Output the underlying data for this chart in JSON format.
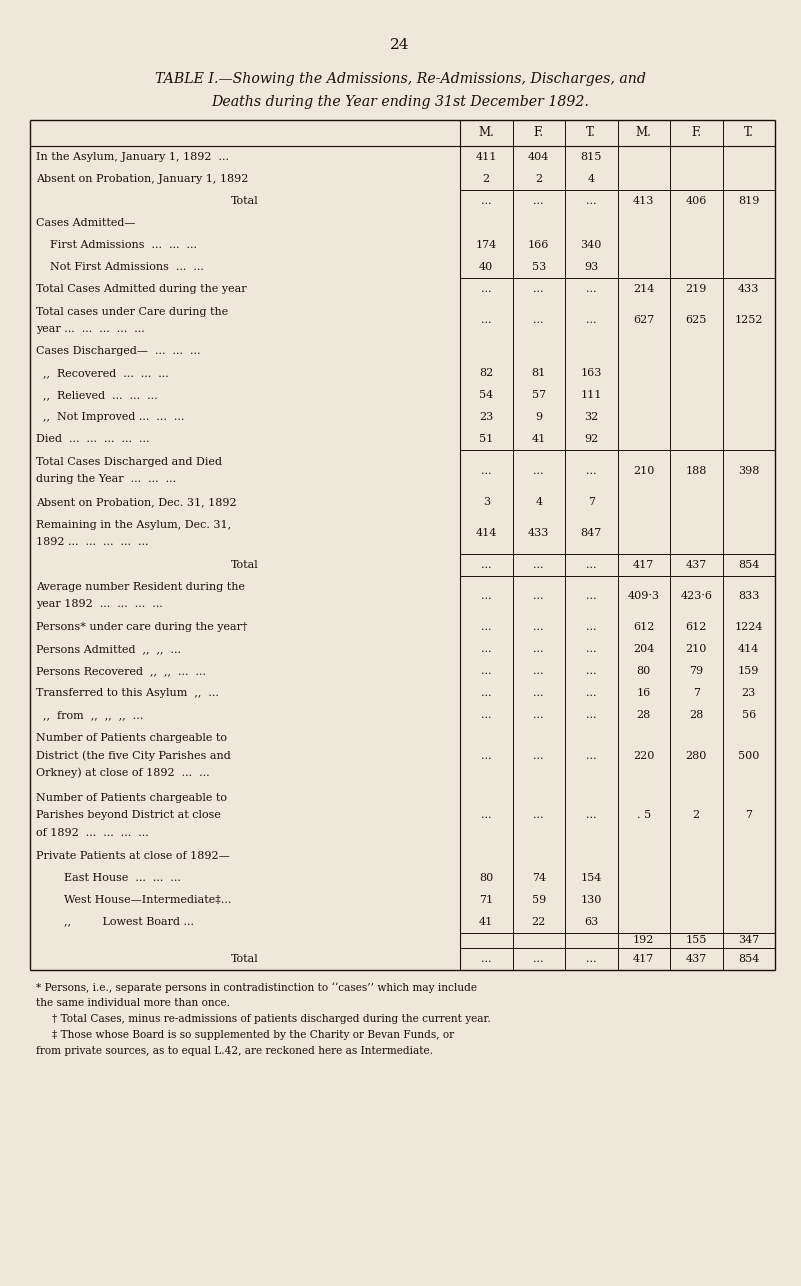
{
  "page_number": "24",
  "title_line1": "TABLE I.—Showing the Admissions, Re-Admissions, Discharges, and",
  "title_line2": "Deaths during the Year ending 31st December 1892.",
  "bg_color": "#ede8d8",
  "text_color": "#1a1008",
  "col_headers": [
    "M.",
    "F.",
    "T.",
    "M.",
    "F.",
    "T."
  ],
  "rows": [
    {
      "label": [
        "In the Asylum, January 1, 1892  ..."
      ],
      "label_indent": false,
      "label_center": false,
      "m1": "411",
      "f1": "404",
      "t1": "815",
      "m2": "",
      "f2": "",
      "t2": "",
      "sep_before": false,
      "sep_col_only": false
    },
    {
      "label": [
        "Absent on Probation, January 1, 1892"
      ],
      "label_indent": false,
      "label_center": false,
      "m1": "2",
      "f1": "2",
      "t1": "4",
      "m2": "",
      "f2": "",
      "t2": "",
      "sep_before": false,
      "sep_col_only": false
    },
    {
      "label": [
        "Total"
      ],
      "label_indent": false,
      "label_center": true,
      "m1": "...",
      "f1": "...",
      "t1": "...",
      "m2": "413",
      "f2": "406",
      "t2": "819",
      "sep_before": true,
      "sep_col_only": false
    },
    {
      "label": [
        "Cases Admitted—"
      ],
      "label_indent": false,
      "label_center": false,
      "m1": "",
      "f1": "",
      "t1": "",
      "m2": "",
      "f2": "",
      "t2": "",
      "sep_before": false,
      "sep_col_only": false
    },
    {
      "label": [
        "    First Admissions  ...  ...  ..."
      ],
      "label_indent": true,
      "label_center": false,
      "m1": "174",
      "f1": "166",
      "t1": "340",
      "m2": "",
      "f2": "",
      "t2": "",
      "sep_before": false,
      "sep_col_only": false
    },
    {
      "label": [
        "    Not First Admissions  ...  ..."
      ],
      "label_indent": true,
      "label_center": false,
      "m1": "40",
      "f1": "53",
      "t1": "93",
      "m2": "",
      "f2": "",
      "t2": "",
      "sep_before": false,
      "sep_col_only": false
    },
    {
      "label": [
        "Total Cases Admitted during the year"
      ],
      "label_indent": false,
      "label_center": false,
      "m1": "...",
      "f1": "...",
      "t1": "...",
      "m2": "214",
      "f2": "219",
      "t2": "433",
      "sep_before": true,
      "sep_col_only": false
    },
    {
      "label": [
        "Total cases under Care during the",
        "    year ...  ...  ...  ...  ..."
      ],
      "label_indent": false,
      "label_center": false,
      "m1": "...",
      "f1": "...",
      "t1": "...",
      "m2": "627",
      "f2": "625",
      "t2": "1252",
      "sep_before": false,
      "sep_col_only": false
    },
    {
      "label": [
        "Cases Discharged—  ...  ...  ..."
      ],
      "label_indent": false,
      "label_center": false,
      "m1": "",
      "f1": "",
      "t1": "",
      "m2": "",
      "f2": "",
      "t2": "",
      "sep_before": false,
      "sep_col_only": false
    },
    {
      "label": [
        "  ,,  Recovered  ...  ...  ..."
      ],
      "label_indent": false,
      "label_center": false,
      "m1": "82",
      "f1": "81",
      "t1": "163",
      "m2": "",
      "f2": "",
      "t2": "",
      "sep_before": false,
      "sep_col_only": false
    },
    {
      "label": [
        "  ,,  Relieved  ...  ...  ..."
      ],
      "label_indent": false,
      "label_center": false,
      "m1": "54",
      "f1": "57",
      "t1": "111",
      "m2": "",
      "f2": "",
      "t2": "",
      "sep_before": false,
      "sep_col_only": false
    },
    {
      "label": [
        "  ,,  Not Improved ...  ...  ..."
      ],
      "label_indent": false,
      "label_center": false,
      "m1": "23",
      "f1": "9",
      "t1": "32",
      "m2": "",
      "f2": "",
      "t2": "",
      "sep_before": false,
      "sep_col_only": false
    },
    {
      "label": [
        "Died  ...  ...  ...  ...  ..."
      ],
      "label_indent": false,
      "label_center": false,
      "m1": "51",
      "f1": "41",
      "t1": "92",
      "m2": "",
      "f2": "",
      "t2": "",
      "sep_before": false,
      "sep_col_only": false
    },
    {
      "label": [
        "Total Cases Discharged and Died",
        "    during the Year  ...  ...  ..."
      ],
      "label_indent": false,
      "label_center": false,
      "m1": "...",
      "f1": "...",
      "t1": "...",
      "m2": "210",
      "f2": "188",
      "t2": "398",
      "sep_before": true,
      "sep_col_only": false
    },
    {
      "label": [
        "Absent on Probation, Dec. 31, 1892"
      ],
      "label_indent": false,
      "label_center": false,
      "m1": "3",
      "f1": "4",
      "t1": "7",
      "m2": "",
      "f2": "",
      "t2": "",
      "sep_before": false,
      "sep_col_only": false
    },
    {
      "label": [
        "Remaining in the Asylum, Dec. 31,",
        "    1892 ...  ...  ...  ...  ..."
      ],
      "label_indent": false,
      "label_center": false,
      "m1": "414",
      "f1": "433",
      "t1": "847",
      "m2": "",
      "f2": "",
      "t2": "",
      "sep_before": false,
      "sep_col_only": false
    },
    {
      "label": [
        "Total"
      ],
      "label_indent": false,
      "label_center": true,
      "m1": "...",
      "f1": "...",
      "t1": "...",
      "m2": "417",
      "f2": "437",
      "t2": "854",
      "sep_before": true,
      "sep_col_only": false
    },
    {
      "label": [
        "Average number Resident during the",
        "    year 1892  ...  ...  ...  ..."
      ],
      "label_indent": false,
      "label_center": false,
      "m1": "...",
      "f1": "...",
      "t1": "...",
      "m2": "409·3",
      "f2": "423·6",
      "t2": "833",
      "sep_before": true,
      "sep_col_only": false
    },
    {
      "label": [
        "Persons* under care during the year†"
      ],
      "label_indent": false,
      "label_center": false,
      "m1": "...",
      "f1": "...",
      "t1": "...",
      "m2": "612",
      "f2": "612",
      "t2": "1224",
      "sep_before": false,
      "sep_col_only": false
    },
    {
      "label": [
        "Persons Admitted  ,,  ,,  ..."
      ],
      "label_indent": false,
      "label_center": false,
      "m1": "...",
      "f1": "...",
      "t1": "...",
      "m2": "204",
      "f2": "210",
      "t2": "414",
      "sep_before": false,
      "sep_col_only": false
    },
    {
      "label": [
        "Persons Recovered  ,,  ,,  ...  ..."
      ],
      "label_indent": false,
      "label_center": false,
      "m1": "...",
      "f1": "...",
      "t1": "...",
      "m2": "80",
      "f2": "79",
      "t2": "159",
      "sep_before": false,
      "sep_col_only": false
    },
    {
      "label": [
        "Transferred to this Asylum  ,,  ..."
      ],
      "label_indent": false,
      "label_center": false,
      "m1": "...",
      "f1": "...",
      "t1": "...",
      "m2": "16",
      "f2": "7",
      "t2": "23",
      "sep_before": false,
      "sep_col_only": false
    },
    {
      "label": [
        "  ,,  from  ,,  ,,  ,,  ..."
      ],
      "label_indent": false,
      "label_center": false,
      "m1": "...",
      "f1": "...",
      "t1": "...",
      "m2": "28",
      "f2": "28",
      "t2": "56",
      "sep_before": false,
      "sep_col_only": false
    },
    {
      "label": [
        "Number of Patients chargeable to",
        "    District (the five City Parishes and",
        "    Orkney) at close of 1892  ...  ..."
      ],
      "label_indent": false,
      "label_center": false,
      "m1": "...",
      "f1": "...",
      "t1": "...",
      "m2": "220",
      "f2": "280",
      "t2": "500",
      "sep_before": false,
      "sep_col_only": false
    },
    {
      "label": [
        "Number of Patients chargeable to",
        "    Parishes beyond District at close",
        "    of 1892  ...  ...  ...  ..."
      ],
      "label_indent": false,
      "label_center": false,
      "m1": "...",
      "f1": "...",
      "t1": "...",
      "m2": ". 5",
      "f2": "2",
      "t2": "7",
      "sep_before": false,
      "sep_col_only": false
    },
    {
      "label": [
        "Private Patients at close of 1892—"
      ],
      "label_indent": false,
      "label_center": false,
      "m1": "",
      "f1": "",
      "t1": "",
      "m2": "",
      "f2": "",
      "t2": "",
      "sep_before": false,
      "sep_col_only": false
    },
    {
      "label": [
        "        East House  ...  ...  ..."
      ],
      "label_indent": false,
      "label_center": false,
      "m1": "80",
      "f1": "74",
      "t1": "154",
      "m2": "",
      "f2": "",
      "t2": "",
      "sep_before": false,
      "sep_col_only": false
    },
    {
      "label": [
        "        West House—Intermediate‡..."
      ],
      "label_indent": false,
      "label_center": false,
      "m1": "71",
      "f1": "59",
      "t1": "130",
      "m2": "",
      "f2": "",
      "t2": "",
      "sep_before": false,
      "sep_col_only": false
    },
    {
      "label": [
        "        ,,         Lowest Board ..."
      ],
      "label_indent": false,
      "label_center": false,
      "m1": "41",
      "f1": "22",
      "t1": "63",
      "m2": "",
      "f2": "",
      "t2": "",
      "sep_before": false,
      "sep_col_only": false
    },
    {
      "label": [
        ""
      ],
      "label_indent": false,
      "label_center": false,
      "m1": "",
      "f1": "",
      "t1": "",
      "m2": "192",
      "f2": "155",
      "t2": "347",
      "sep_before": true,
      "sep_col_only": true
    },
    {
      "label": [
        "Total"
      ],
      "label_indent": false,
      "label_center": true,
      "m1": "...",
      "f1": "...",
      "t1": "...",
      "m2": "417",
      "f2": "437",
      "t2": "854",
      "sep_before": true,
      "sep_col_only": false
    }
  ],
  "footnote_lines": [
    {
      "text": "* Persons, i.e., separate persons in contradistinction to ‘‘cases’’ which may include",
      "indent": false
    },
    {
      "text": "the same individual more than once.",
      "indent": false
    },
    {
      "text": "† Total Cases, minus re-admissions of patients discharged during the current year.",
      "indent": true
    },
    {
      "text": "‡ Those whose Board is so supplemented by the Charity or Bevan Funds, or",
      "indent": true
    },
    {
      "text": "from private sources, as to equal L.42, are reckoned here as Intermediate.",
      "indent": false
    }
  ]
}
